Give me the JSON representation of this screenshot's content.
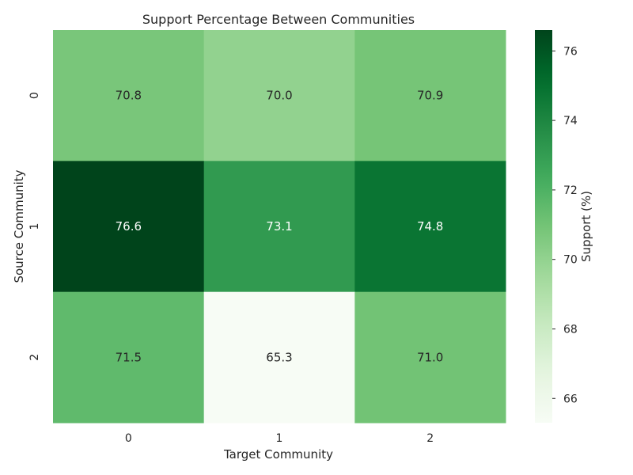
{
  "chart_data": {
    "type": "heatmap",
    "title": "Support Percentage Between Communities",
    "xlabel": "Target Community",
    "ylabel": "Source Community",
    "x_categories": [
      "0",
      "1",
      "2"
    ],
    "y_categories": [
      "0",
      "1",
      "2"
    ],
    "values": [
      [
        70.8,
        70.0,
        70.9
      ],
      [
        76.6,
        73.1,
        74.8
      ],
      [
        71.5,
        65.3,
        71.0
      ]
    ],
    "value_labels": [
      [
        "70.8",
        "70.0",
        "70.9"
      ],
      [
        "76.6",
        "73.1",
        "74.8"
      ],
      [
        "71.5",
        "65.3",
        "71.0"
      ]
    ],
    "colormap": "Greens",
    "colorbar": {
      "label": "Support (%)",
      "range": [
        65.3,
        76.6
      ],
      "ticks": [
        66,
        68,
        70,
        72,
        74,
        76
      ],
      "tick_labels": [
        "66",
        "68",
        "70",
        "72",
        "74",
        "76"
      ]
    },
    "grid": false,
    "legend": "colorbar-right"
  }
}
